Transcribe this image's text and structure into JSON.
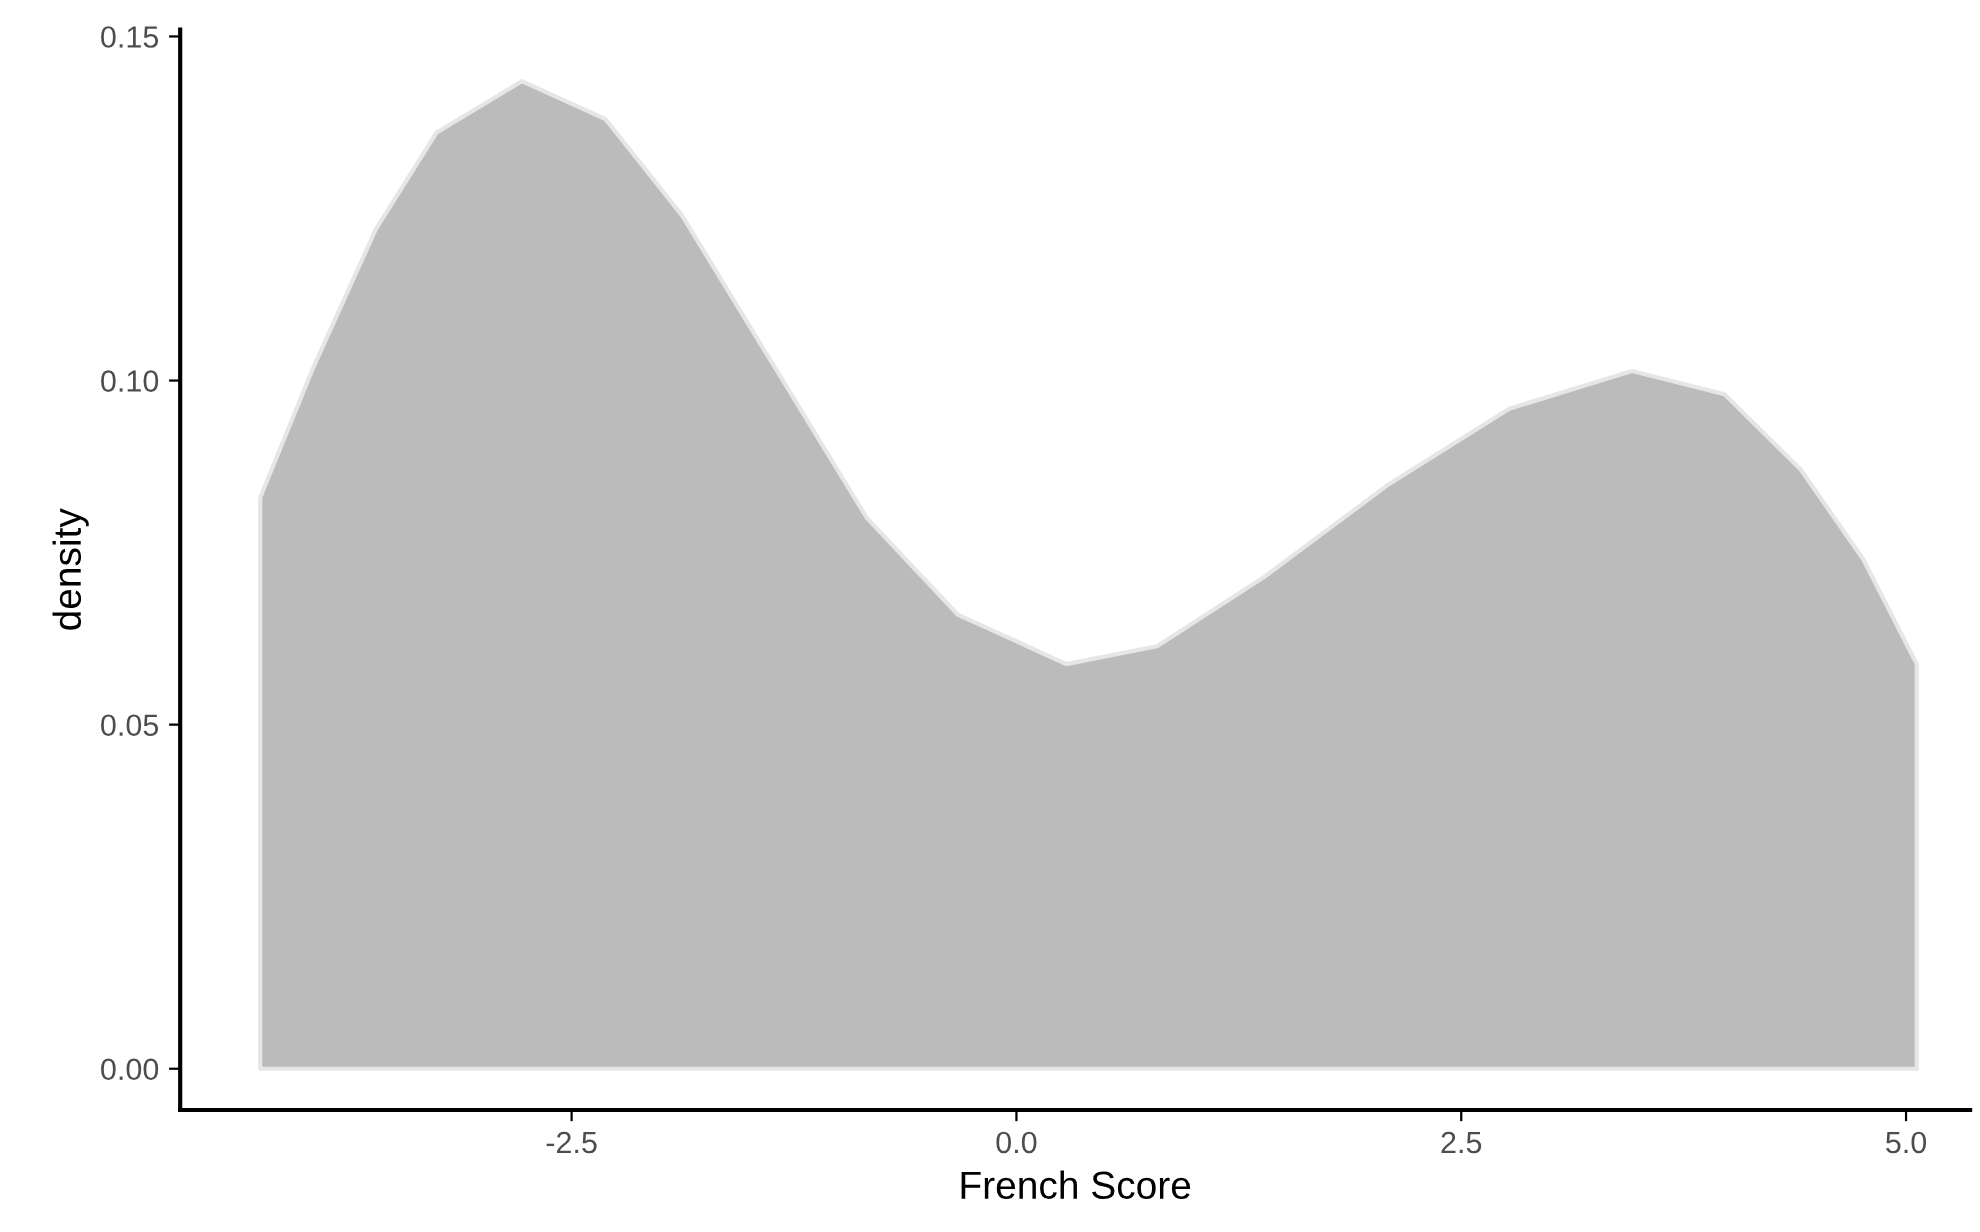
{
  "chart_data": {
    "type": "area",
    "xlabel": "French Score",
    "ylabel": "density",
    "x": [
      -4.25,
      -3.95,
      -3.6,
      -3.26,
      -2.78,
      -2.31,
      -1.88,
      -1.36,
      -0.84,
      -0.33,
      0.28,
      0.79,
      1.39,
      2.08,
      2.77,
      3.46,
      3.98,
      4.41,
      4.76,
      5.06
    ],
    "series": [
      {
        "color": "#bbbbbb",
        "values": [
          0.083,
          0.102,
          0.122,
          0.136,
          0.1435,
          0.138,
          0.124,
          0.102,
          0.08,
          0.066,
          0.0588,
          0.0614,
          0.0714,
          0.0847,
          0.0959,
          0.1014,
          0.098,
          0.087,
          0.074,
          0.0588
        ]
      }
    ],
    "xlim": [
      -4.7,
      5.36
    ],
    "ylim": [
      -0.006,
      0.151
    ],
    "xticks": [
      {
        "value": -2.5,
        "label": "-2.5"
      },
      {
        "value": 0,
        "label": "0.0"
      },
      {
        "value": 2.5,
        "label": "2.5"
      },
      {
        "value": 5,
        "label": "5.0"
      }
    ],
    "yticks": [
      {
        "value": 0,
        "label": "0.00"
      },
      {
        "value": 0.05,
        "label": "0.05"
      },
      {
        "value": 0.1,
        "label": "0.10"
      },
      {
        "value": 0.15,
        "label": "0.15"
      }
    ],
    "grid": false
  }
}
